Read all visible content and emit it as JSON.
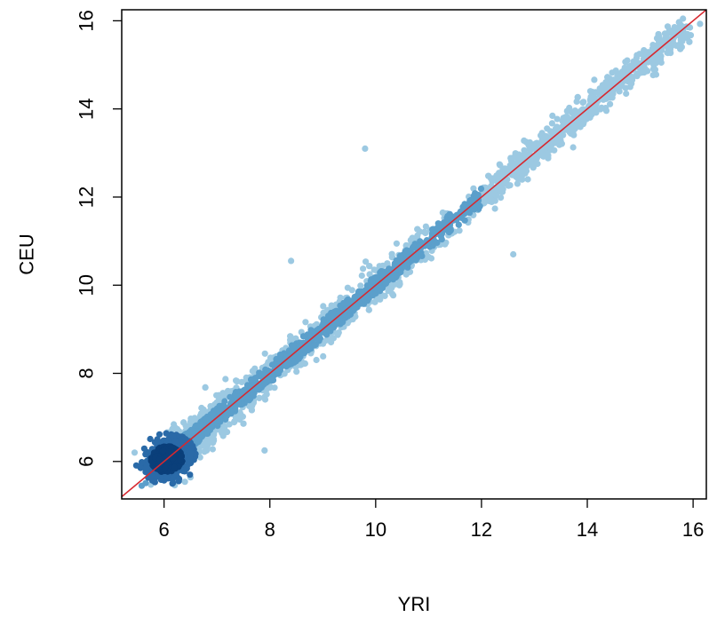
{
  "chart_data": {
    "type": "scatter",
    "xlabel": "YRI",
    "ylabel": "CEU",
    "xlim": [
      5.2,
      16.25
    ],
    "ylim": [
      5.15,
      16.25
    ],
    "x_ticks": [
      "6",
      "8",
      "10",
      "12",
      "14",
      "16"
    ],
    "y_ticks": [
      "6",
      "8",
      "10",
      "12",
      "14",
      "16"
    ],
    "grid": false,
    "legend": "none",
    "reference_line": {
      "slope": 1,
      "intercept": 0,
      "color": "#d7282f"
    },
    "point_colors": {
      "light": "#9cc9e2",
      "mid": "#5b9fcb",
      "dark": "#0a3f7a"
    },
    "notable_points": [
      {
        "x": 8.4,
        "y": 10.55
      },
      {
        "x": 9.8,
        "y": 13.1
      },
      {
        "x": 12.6,
        "y": 10.7
      },
      {
        "x": 7.9,
        "y": 6.25
      },
      {
        "x": 15.8,
        "y": 15.85
      }
    ]
  }
}
